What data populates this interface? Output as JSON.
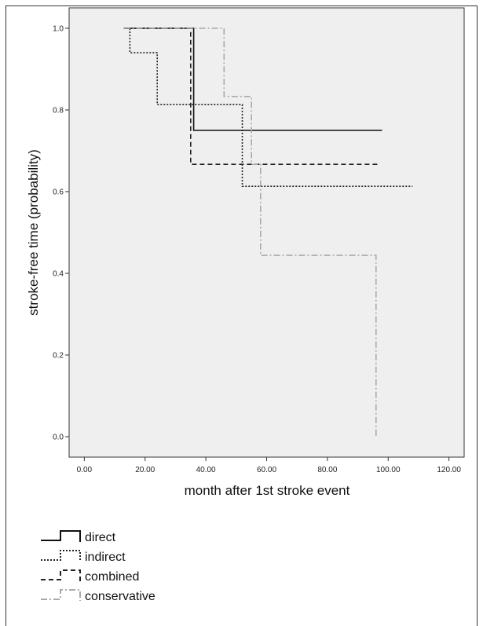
{
  "chart_data": {
    "type": "line",
    "subtype": "step",
    "title": "",
    "xlabel": "month after 1st stroke event",
    "ylabel": "stroke-free time (probability)",
    "xlim": [
      -5,
      125
    ],
    "ylim": [
      -0.05,
      1.05
    ],
    "x_ticks": [
      0,
      20,
      40,
      60,
      80,
      100,
      120
    ],
    "x_tick_labels": [
      "0.00",
      "20.00",
      "40.00",
      "60.00",
      "80.00",
      "100.00",
      "120.00"
    ],
    "y_ticks": [
      0.0,
      0.2,
      0.4,
      0.6,
      0.8,
      1.0
    ],
    "y_tick_labels": [
      "0.0",
      "0.2",
      "0.4",
      "0.6",
      "0.8",
      "1.0"
    ],
    "grid": false,
    "legend_position": "bottom-left",
    "plot_background": "#efefef",
    "series": [
      {
        "name": "direct",
        "color": "#111111",
        "dash": "solid",
        "points": [
          [
            13,
            1.0
          ],
          [
            36,
            1.0
          ],
          [
            36,
            0.75
          ],
          [
            98,
            0.75
          ]
        ]
      },
      {
        "name": "indirect",
        "color": "#222222",
        "dash": "dotted",
        "points": [
          [
            14,
            1.0
          ],
          [
            15,
            1.0
          ],
          [
            15,
            0.94
          ],
          [
            24,
            0.94
          ],
          [
            24,
            0.813
          ],
          [
            52,
            0.813
          ],
          [
            52,
            0.613
          ],
          [
            108,
            0.613
          ]
        ]
      },
      {
        "name": "combined",
        "color": "#222222",
        "dash": "dashed",
        "points": [
          [
            13,
            1.0
          ],
          [
            35,
            1.0
          ],
          [
            35,
            0.667
          ],
          [
            97,
            0.667
          ]
        ]
      },
      {
        "name": "conservative",
        "color": "#aaaaaa",
        "dash": "dashdot",
        "points": [
          [
            13,
            1.0
          ],
          [
            46,
            1.0
          ],
          [
            46,
            0.833
          ],
          [
            55,
            0.833
          ],
          [
            55,
            0.667
          ],
          [
            58,
            0.667
          ],
          [
            58,
            0.444
          ],
          [
            96,
            0.444
          ],
          [
            96,
            0.0
          ]
        ]
      }
    ]
  }
}
